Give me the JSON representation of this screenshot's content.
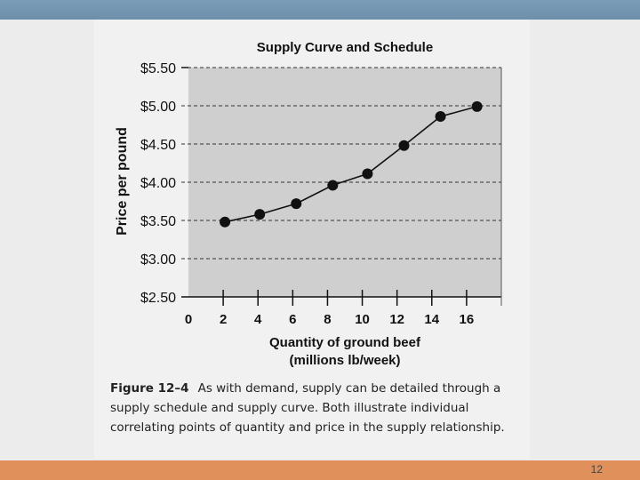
{
  "chart_data": {
    "type": "line",
    "title": "Supply Curve and Schedule",
    "xlabel_line1": "Quantity of ground beef",
    "xlabel_line2": "(millions lb/week)",
    "ylabel": "Price per pound",
    "x": [
      2.1,
      4.1,
      6.2,
      8.3,
      10.3,
      12.4,
      14.5,
      16.6
    ],
    "y": [
      3.48,
      3.58,
      3.72,
      3.96,
      4.11,
      4.48,
      4.86,
      4.99
    ],
    "xlim": [
      0,
      18
    ],
    "ylim": [
      2.5,
      5.5
    ],
    "xticks": [
      0,
      2,
      4,
      6,
      8,
      10,
      12,
      14,
      16
    ],
    "xtick_labels": [
      "0",
      "2",
      "4",
      "6",
      "8",
      "10",
      "12",
      "14",
      "16"
    ],
    "yticks": [
      2.5,
      3.0,
      3.5,
      4.0,
      4.5,
      5.0,
      5.5
    ],
    "ytick_labels": [
      "$2.50",
      "$3.00",
      "$3.50",
      "$4.00",
      "$4.50",
      "$5.00",
      "$5.50"
    ],
    "grid": "horizontal dashed"
  },
  "caption": {
    "figure_label": "Figure 12–4",
    "text": "As with demand, supply can be detailed through a supply schedule and supply curve. Both illustrate individual correlating points of quantity and price in the supply relationship."
  },
  "slide": {
    "number": "12"
  },
  "colors": {
    "plot_background": "#cfcfcf",
    "line": "#111111",
    "top_band": "#7b9cb6",
    "bottom_band": "#e0905a"
  }
}
